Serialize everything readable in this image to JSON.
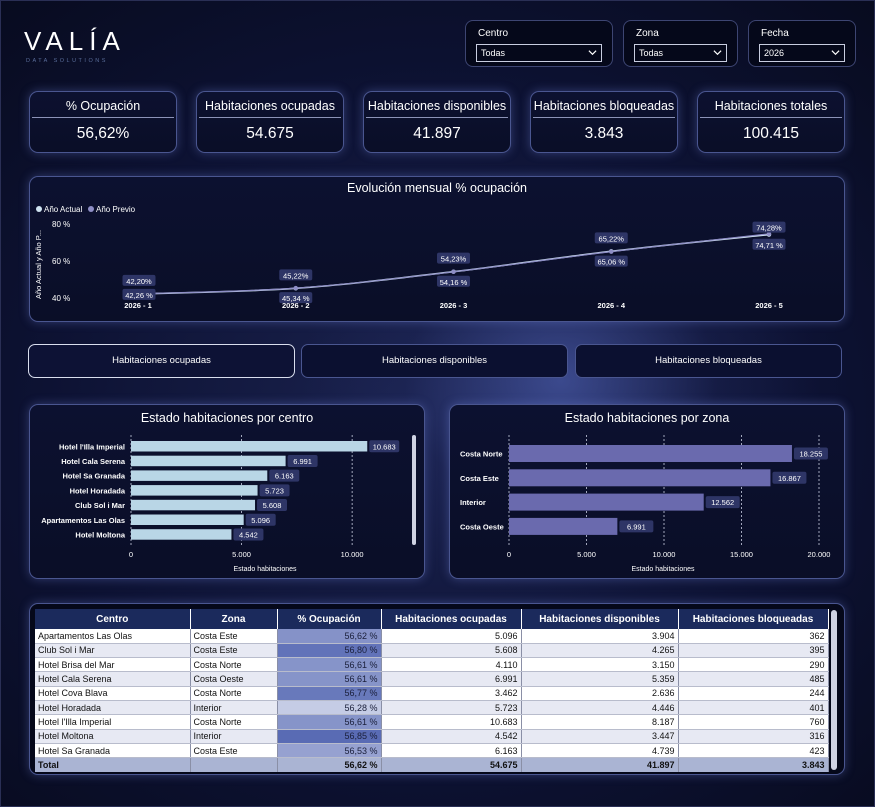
{
  "brand": {
    "name": "VALÍA",
    "tagline": "DATA SOLUTIONS"
  },
  "filters": [
    {
      "label": "Centro",
      "value": "Todas"
    },
    {
      "label": "Zona",
      "value": "Todas"
    },
    {
      "label": "Fecha",
      "value": "2026"
    }
  ],
  "kpis": [
    {
      "title": "% Ocupación",
      "value": "56,62%"
    },
    {
      "title": "Habitaciones ocupadas",
      "value": "54.675"
    },
    {
      "title": "Habitaciones disponibles",
      "value": "41.897"
    },
    {
      "title": "Habitaciones bloqueadas",
      "value": "3.843"
    },
    {
      "title": "Habitaciones totales",
      "value": "100.415"
    }
  ],
  "line_chart": {
    "title": "Evolución mensual % ocupación",
    "ylabel": "Año Actual y Año P...",
    "legend": [
      "Año Actual",
      "Año Previo"
    ],
    "yticks": [
      "80 %",
      "60 %",
      "40 %"
    ],
    "categories": [
      "2026 - 1",
      "2026 - 2",
      "2026 - 3",
      "2026 - 4",
      "2026 - 5"
    ],
    "actual_labels": [
      "42,20%",
      "45,22%",
      "54,23%",
      "65,22%",
      "74,28%"
    ],
    "previo_labels": [
      "42,26 %",
      "45,34 %",
      "54,16 %",
      "65,06 %",
      "74,71 %"
    ]
  },
  "tabs": [
    "Habitaciones ocupadas",
    "Habitaciones disponibles",
    "Habitaciones bloqueadas"
  ],
  "bar_centro": {
    "title": "Estado habitaciones por centro",
    "xlabel": "Estado habitaciones",
    "ticks": [
      "0",
      "5.000",
      "10.000"
    ],
    "labels": [
      "10.683",
      "6.991",
      "6.163",
      "5.723",
      "5.608",
      "5.096",
      "4.542"
    ]
  },
  "bar_zona": {
    "title": "Estado habitaciones por zona",
    "xlabel": "Estado habitaciones",
    "ticks": [
      "0",
      "5.000",
      "10.000",
      "15.000",
      "20.000"
    ],
    "labels": [
      "18.255",
      "16.867",
      "12.562",
      "6.991"
    ]
  },
  "table": {
    "headers": [
      "Centro",
      "Zona",
      "% Ocupación",
      "Habitaciones ocupadas",
      "Habitaciones disponibles",
      "Habitaciones bloqueadas"
    ],
    "rows": [
      [
        "Apartamentos Las Olas",
        "Costa Este",
        "56,62 %",
        "5.096",
        "3.904",
        "362"
      ],
      [
        "Club Sol i Mar",
        "Costa Este",
        "56,80 %",
        "5.608",
        "4.265",
        "395"
      ],
      [
        "Hotel Brisa del Mar",
        "Costa Norte",
        "56,61 %",
        "4.110",
        "3.150",
        "290"
      ],
      [
        "Hotel Cala Serena",
        "Costa Oeste",
        "56,61 %",
        "6.991",
        "5.359",
        "485"
      ],
      [
        "Hotel Cova Blava",
        "Costa Norte",
        "56,77 %",
        "3.462",
        "2.636",
        "244"
      ],
      [
        "Hotel Horadada",
        "Interior",
        "56,28 %",
        "5.723",
        "4.446",
        "401"
      ],
      [
        "Hotel l'Illa Imperial",
        "Costa Norte",
        "56,61 %",
        "10.683",
        "8.187",
        "760"
      ],
      [
        "Hotel Moltona",
        "Interior",
        "56,85 %",
        "4.542",
        "3.447",
        "316"
      ],
      [
        "Hotel Sa Granada",
        "Costa Este",
        "56,53 %",
        "6.163",
        "4.739",
        "423"
      ]
    ],
    "total": [
      "Total",
      "",
      "56,62 %",
      "54.675",
      "41.897",
      "3.843"
    ]
  },
  "chart_data": [
    {
      "type": "line",
      "title": "Evolución mensual % ocupación",
      "ylabel": "Año Actual y Año P...",
      "x": [
        "2026 - 1",
        "2026 - 2",
        "2026 - 3",
        "2026 - 4",
        "2026 - 5"
      ],
      "series": [
        {
          "name": "Año Actual",
          "values": [
            42.2,
            45.22,
            54.23,
            65.22,
            74.28
          ]
        },
        {
          "name": "Año Previo",
          "values": [
            42.26,
            45.34,
            54.16,
            65.06,
            74.71
          ]
        }
      ],
      "ylim": [
        40,
        80
      ],
      "legend": "top-left"
    },
    {
      "type": "bar",
      "orientation": "horizontal",
      "title": "Estado habitaciones por centro",
      "xlabel": "Estado habitaciones",
      "categories": [
        "Hotel l'Illa Imperial",
        "Hotel Cala Serena",
        "Hotel Sa Granada",
        "Hotel Horadada",
        "Club Sol i Mar",
        "Apartamentos Las Olas",
        "Hotel Moltona"
      ],
      "values": [
        10683,
        6991,
        6163,
        5723,
        5608,
        5096,
        4542
      ],
      "xlim": [
        0,
        12000
      ],
      "grid": true,
      "color": "#b9d6e6"
    },
    {
      "type": "bar",
      "orientation": "horizontal",
      "title": "Estado habitaciones por zona",
      "xlabel": "Estado habitaciones",
      "categories": [
        "Costa Norte",
        "Costa Este",
        "Interior",
        "Costa Oeste"
      ],
      "values": [
        18255,
        16867,
        12562,
        6991
      ],
      "xlim": [
        0,
        20000
      ],
      "grid": true,
      "color": "#6a6aae"
    }
  ]
}
